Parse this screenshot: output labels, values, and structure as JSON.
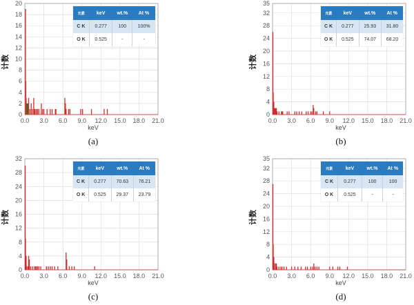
{
  "colors": {
    "spectrum": "#d42a2a",
    "highlight": "#3a6e1f",
    "grid": "#dddddd",
    "axis": "#999999",
    "table_header": "#2b7bc0",
    "table_row1": "#d8e5f2"
  },
  "chart_data": [
    {
      "type": "bar",
      "label": "(a)",
      "xlabel": "keV",
      "ylabel": "计数",
      "xlim": [
        0,
        21
      ],
      "ylim": [
        0,
        20
      ],
      "xticks": [
        "0.0",
        "3.0",
        "6.0",
        "9.0",
        "12.0",
        "15.0",
        "18.0",
        "21.0"
      ],
      "yticks": [
        "0",
        "2",
        "4",
        "6",
        "8",
        "10",
        "12",
        "14",
        "16",
        "18",
        "20"
      ],
      "grid": true,
      "table": {
        "headers": [
          "元素",
          "keV",
          "wt.%",
          "At %"
        ],
        "rows": [
          [
            "C K",
            "0.277",
            "100",
            "100%"
          ],
          [
            "O K",
            "0.525",
            "-",
            "-"
          ]
        ]
      },
      "bars": [
        [
          0.1,
          19
        ],
        [
          0.15,
          6
        ],
        [
          0.2,
          3
        ],
        [
          0.3,
          2,
          "g"
        ],
        [
          0.4,
          2,
          "g"
        ],
        [
          0.5,
          2,
          "g"
        ],
        [
          0.6,
          3
        ],
        [
          0.8,
          1
        ],
        [
          1.0,
          2
        ],
        [
          1.2,
          1
        ],
        [
          1.4,
          3
        ],
        [
          1.5,
          1
        ],
        [
          1.6,
          1
        ],
        [
          1.8,
          1
        ],
        [
          2.0,
          1
        ],
        [
          2.2,
          1
        ],
        [
          2.6,
          2
        ],
        [
          2.8,
          1
        ],
        [
          3.0,
          1
        ],
        [
          3.5,
          1
        ],
        [
          4.0,
          1
        ],
        [
          4.3,
          1
        ],
        [
          4.8,
          1
        ],
        [
          4.9,
          1
        ],
        [
          6.3,
          3
        ],
        [
          6.4,
          2
        ],
        [
          6.5,
          1
        ],
        [
          6.9,
          1
        ],
        [
          7.1,
          1
        ],
        [
          8.8,
          1
        ],
        [
          9.1,
          1
        ],
        [
          10.5,
          1
        ],
        [
          12.5,
          1
        ],
        [
          13.0,
          1
        ]
      ]
    },
    {
      "type": "bar",
      "label": "(b)",
      "xlabel": "keV",
      "ylabel": "计数",
      "xlim": [
        0,
        21
      ],
      "ylim": [
        0,
        35
      ],
      "xticks": [
        "0.0",
        "3.0",
        "6.0",
        "9.0",
        "12.0",
        "15.0",
        "18.0",
        "21.0"
      ],
      "yticks": [
        "0",
        "4",
        "8",
        "12",
        "16",
        "20",
        "24",
        "28",
        "32",
        "35"
      ],
      "grid": true,
      "table": {
        "headers": [
          "元素",
          "keV",
          "wt.%",
          "At %"
        ],
        "rows": [
          [
            "C K",
            "0.277",
            "25.93",
            "31.80"
          ],
          [
            "O K",
            "0.525",
            "74.07",
            "68.20"
          ]
        ]
      },
      "bars": [
        [
          0.05,
          26
        ],
        [
          0.1,
          7
        ],
        [
          0.2,
          4
        ],
        [
          0.3,
          2
        ],
        [
          0.4,
          2
        ],
        [
          0.5,
          2
        ],
        [
          0.6,
          2
        ],
        [
          0.7,
          1
        ],
        [
          1.0,
          1
        ],
        [
          1.4,
          1
        ],
        [
          1.5,
          1
        ],
        [
          1.6,
          1
        ],
        [
          2.3,
          1
        ],
        [
          2.6,
          1
        ],
        [
          3.5,
          1
        ],
        [
          3.8,
          1
        ],
        [
          4.2,
          1
        ],
        [
          4.6,
          1
        ],
        [
          5.3,
          1
        ],
        [
          5.6,
          1
        ],
        [
          6.0,
          1
        ],
        [
          6.2,
          1
        ],
        [
          6.4,
          3
        ],
        [
          6.5,
          2
        ],
        [
          6.8,
          1
        ],
        [
          7.0,
          1
        ],
        [
          8.0,
          1
        ],
        [
          9.0,
          1
        ]
      ]
    },
    {
      "type": "bar",
      "label": "(c)",
      "xlabel": "keV",
      "ylabel": "计数",
      "xlim": [
        0,
        21
      ],
      "ylim": [
        0,
        32
      ],
      "xticks": [
        "0.0",
        "3.0",
        "6.0",
        "9.0",
        "12.0",
        "15.0",
        "18.0",
        "21.0"
      ],
      "yticks": [
        "0",
        "4",
        "8",
        "12",
        "16",
        "20",
        "24",
        "28",
        "32"
      ],
      "grid": true,
      "table": {
        "headers": [
          "元素",
          "keV",
          "wt.%",
          "At %"
        ],
        "rows": [
          [
            "C K",
            "0.277",
            "70.63",
            "76.21"
          ],
          [
            "O K",
            "0.525",
            "29.37",
            "23.79"
          ]
        ]
      },
      "bars": [
        [
          0.05,
          30
        ],
        [
          0.1,
          9
        ],
        [
          0.2,
          4
        ],
        [
          0.3,
          1
        ],
        [
          0.5,
          1
        ],
        [
          0.6,
          4
        ],
        [
          0.7,
          3
        ],
        [
          0.9,
          1
        ],
        [
          1.2,
          1
        ],
        [
          1.5,
          1
        ],
        [
          1.7,
          1
        ],
        [
          1.8,
          1
        ],
        [
          2.0,
          1
        ],
        [
          2.2,
          1
        ],
        [
          2.5,
          1
        ],
        [
          3.4,
          1
        ],
        [
          3.7,
          1
        ],
        [
          4.0,
          1
        ],
        [
          4.3,
          1
        ],
        [
          4.7,
          1
        ],
        [
          5.2,
          1
        ],
        [
          6.5,
          5
        ],
        [
          6.6,
          3
        ],
        [
          7.0,
          1
        ],
        [
          7.4,
          1
        ],
        [
          7.8,
          1
        ],
        [
          11.0,
          1
        ]
      ]
    },
    {
      "type": "bar",
      "label": "(d)",
      "xlabel": "keV",
      "ylabel": "计数",
      "xlim": [
        0,
        21
      ],
      "ylim": [
        0,
        35
      ],
      "xticks": [
        "0.0",
        "3.0",
        "6.0",
        "9.0",
        "12.0",
        "15.0",
        "18.0",
        "21.0"
      ],
      "yticks": [
        "0",
        "4",
        "8",
        "12",
        "16",
        "20",
        "24",
        "28",
        "32",
        "35"
      ],
      "grid": true,
      "table": {
        "headers": [
          "元素",
          "keV",
          "wt.%",
          "At %"
        ],
        "rows": [
          [
            "C K",
            "0.277",
            "100",
            "100"
          ],
          [
            "O K",
            "0.525",
            "-",
            "-"
          ]
        ]
      },
      "bars": [
        [
          0.05,
          27
        ],
        [
          0.1,
          8
        ],
        [
          0.2,
          4
        ],
        [
          0.3,
          2
        ],
        [
          0.5,
          2
        ],
        [
          0.6,
          2
        ],
        [
          0.7,
          1
        ],
        [
          1.0,
          1
        ],
        [
          1.3,
          1
        ],
        [
          1.5,
          1
        ],
        [
          1.8,
          1
        ],
        [
          2.2,
          1
        ],
        [
          3.0,
          1
        ],
        [
          3.5,
          1
        ],
        [
          4.0,
          1
        ],
        [
          4.5,
          1
        ],
        [
          5.2,
          1
        ],
        [
          5.5,
          1
        ],
        [
          6.0,
          1
        ],
        [
          6.3,
          1
        ],
        [
          6.5,
          2
        ],
        [
          6.7,
          1
        ],
        [
          7.0,
          1
        ],
        [
          7.3,
          1
        ],
        [
          9.0,
          1
        ],
        [
          9.5,
          1
        ],
        [
          10.3,
          1
        ],
        [
          10.6,
          1
        ],
        [
          11.8,
          1
        ]
      ]
    }
  ]
}
